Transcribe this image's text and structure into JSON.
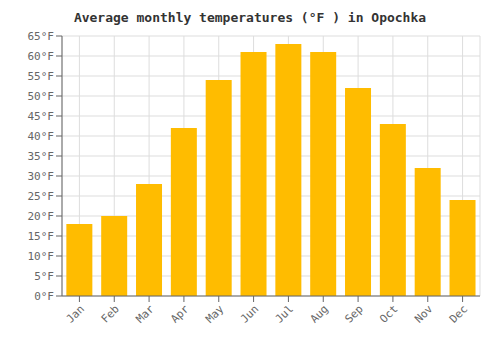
{
  "chart_data": {
    "type": "bar",
    "title": "Average monthly temperatures (°F ) in Opochka",
    "categories": [
      "Jan",
      "Feb",
      "Mar",
      "Apr",
      "May",
      "Jun",
      "Jul",
      "Aug",
      "Sep",
      "Oct",
      "Nov",
      "Dec"
    ],
    "values": [
      18,
      20,
      28,
      42,
      54,
      61,
      63,
      61,
      52,
      43,
      32,
      24
    ],
    "color": "#FFBC00",
    "ylim": [
      0,
      65
    ],
    "yticks": [
      {
        "value": 0,
        "label": "0°F"
      },
      {
        "value": 5,
        "label": "5°F"
      },
      {
        "value": 10,
        "label": "10°F"
      },
      {
        "value": 15,
        "label": "15°F"
      },
      {
        "value": 20,
        "label": "20°F"
      },
      {
        "value": 25,
        "label": "25°F"
      },
      {
        "value": 30,
        "label": "30°F"
      },
      {
        "value": 35,
        "label": "35°F"
      },
      {
        "value": 40,
        "label": "40°F"
      },
      {
        "value": 45,
        "label": "45°F"
      },
      {
        "value": 50,
        "label": "50°F"
      },
      {
        "value": 55,
        "label": "55°F"
      },
      {
        "value": 60,
        "label": "60°F"
      },
      {
        "value": 65,
        "label": "65°F"
      }
    ],
    "grid": true
  }
}
